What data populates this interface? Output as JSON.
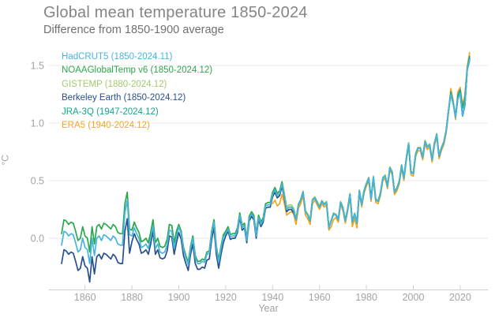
{
  "header": {
    "title": "Global mean temperature 1850-2024",
    "subtitle": "Difference from 1850-1900 average"
  },
  "chart_data": {
    "type": "line",
    "title": "Global mean temperature 1850-2024",
    "subtitle": "Difference from 1850-1900 average",
    "xlabel": "Year",
    "ylabel": "°C",
    "grid": "horizontal",
    "legend_position": "top-left",
    "xlim": [
      1848,
      2026
    ],
    "ylim": [
      -0.45,
      1.65
    ],
    "x_ticks": [
      1860,
      1880,
      1900,
      1920,
      1940,
      1960,
      1980,
      2000,
      2020
    ],
    "y_ticks": [
      0.0,
      0.5,
      1.0,
      1.5
    ],
    "y_tick_labels": [
      "0.0",
      "0.5",
      "1.0",
      "1.5"
    ],
    "style": {
      "grid_color": "#e8e9ea",
      "axis_color": "#cdcfd1",
      "tick_label_color": "#a1a3a6",
      "background": "#ffffff"
    },
    "draw_order": [
      2,
      5,
      3,
      1,
      4,
      0
    ],
    "series": [
      {
        "name": "HadCRUT5",
        "label": "HadCRUT5 (1850-2024.11)",
        "color": "#45b5e0",
        "start_year": 1850,
        "end": "2024.11",
        "values": [
          -0.06,
          0.06,
          0.05,
          0.02,
          0.04,
          0.03,
          -0.04,
          -0.12,
          -0.1,
          0.0,
          -0.08,
          -0.1,
          -0.22,
          0.0,
          -0.15,
          0.0,
          0.02,
          -0.02,
          0.03,
          0.02,
          0.0,
          -0.02,
          0.02,
          0.0,
          -0.05,
          -0.06,
          -0.06,
          0.22,
          0.33,
          0.03,
          0.02,
          0.09,
          0.04,
          0.0,
          -0.08,
          -0.07,
          -0.05,
          -0.09,
          0.0,
          0.11,
          -0.09,
          -0.05,
          -0.12,
          -0.13,
          -0.12,
          -0.06,
          0.07,
          0.06,
          -0.09,
          0.01,
          0.1,
          0.04,
          -0.1,
          -0.17,
          -0.23,
          -0.09,
          0.0,
          -0.17,
          -0.22,
          -0.22,
          -0.2,
          -0.21,
          -0.14,
          -0.13,
          0.04,
          0.14,
          -0.09,
          -0.21,
          -0.09,
          0.01,
          0.04,
          0.08,
          0.01,
          0.02,
          0.02,
          0.07,
          0.2,
          0.09,
          0.11,
          -0.02,
          0.17,
          0.21,
          0.18,
          0.02,
          0.18,
          0.12,
          0.16,
          0.28,
          0.29,
          0.29,
          0.38,
          0.42,
          0.37,
          0.39,
          0.47,
          0.37,
          0.25,
          0.27,
          0.27,
          0.24,
          0.16,
          0.29,
          0.33,
          0.4,
          0.23,
          0.2,
          0.15,
          0.33,
          0.35,
          0.31,
          0.27,
          0.32,
          0.29,
          0.31,
          0.09,
          0.15,
          0.21,
          0.2,
          0.16,
          0.31,
          0.26,
          0.15,
          0.25,
          0.38,
          0.14,
          0.21,
          0.13,
          0.41,
          0.29,
          0.41,
          0.47,
          0.52,
          0.34,
          0.53,
          0.33,
          0.32,
          0.39,
          0.52,
          0.54,
          0.45,
          0.61,
          0.57,
          0.4,
          0.43,
          0.49,
          0.63,
          0.52,
          0.69,
          0.82,
          0.57,
          0.56,
          0.73,
          0.78,
          0.78,
          0.7,
          0.84,
          0.79,
          0.81,
          0.68,
          0.82,
          0.9,
          0.71,
          0.78,
          0.83,
          0.93,
          1.1,
          1.25,
          1.17,
          1.05,
          1.21,
          1.26,
          1.06,
          1.15,
          1.46,
          1.55
        ]
      },
      {
        "name": "NOAAGlobalTemp v6",
        "label": "NOAAGlobalTemp v6 (1850-2024.12)",
        "color": "#2ba84d",
        "start_year": 1850,
        "end": "2024.12",
        "values": [
          0.04,
          0.16,
          0.15,
          0.12,
          0.14,
          0.13,
          0.06,
          -0.02,
          0.0,
          0.1,
          0.02,
          0.0,
          -0.12,
          0.1,
          -0.05,
          0.1,
          0.12,
          0.08,
          0.13,
          0.12,
          0.1,
          0.08,
          0.12,
          0.1,
          0.05,
          0.04,
          0.04,
          0.3,
          0.4,
          0.08,
          0.07,
          0.14,
          0.09,
          0.05,
          -0.03,
          -0.02,
          0.0,
          -0.04,
          0.05,
          0.16,
          -0.04,
          0.0,
          -0.07,
          -0.08,
          -0.07,
          -0.01,
          0.12,
          0.11,
          -0.04,
          0.06,
          0.12,
          0.06,
          -0.08,
          -0.15,
          -0.21,
          -0.07,
          0.02,
          -0.15,
          -0.2,
          -0.2,
          -0.18,
          -0.19,
          -0.12,
          -0.11,
          0.06,
          0.16,
          -0.07,
          -0.19,
          -0.07,
          0.03,
          0.06,
          0.1,
          0.03,
          0.04,
          0.04,
          0.09,
          0.22,
          0.11,
          0.13,
          0.0,
          0.19,
          0.23,
          0.2,
          0.04,
          0.2,
          0.14,
          0.18,
          0.3,
          0.31,
          0.31,
          0.4,
          0.44,
          0.39,
          0.41,
          0.49,
          0.37,
          0.25,
          0.27,
          0.27,
          0.24,
          0.16,
          0.29,
          0.33,
          0.4,
          0.23,
          0.2,
          0.15,
          0.33,
          0.35,
          0.31,
          0.27,
          0.32,
          0.29,
          0.31,
          0.09,
          0.15,
          0.21,
          0.2,
          0.16,
          0.31,
          0.26,
          0.15,
          0.25,
          0.38,
          0.14,
          0.21,
          0.13,
          0.41,
          0.29,
          0.41,
          0.47,
          0.52,
          0.34,
          0.53,
          0.33,
          0.32,
          0.39,
          0.52,
          0.54,
          0.45,
          0.61,
          0.57,
          0.4,
          0.43,
          0.49,
          0.63,
          0.52,
          0.69,
          0.82,
          0.57,
          0.56,
          0.73,
          0.78,
          0.78,
          0.7,
          0.84,
          0.79,
          0.81,
          0.68,
          0.82,
          0.9,
          0.71,
          0.78,
          0.83,
          0.93,
          1.1,
          1.25,
          1.17,
          1.05,
          1.21,
          1.26,
          1.06,
          1.15,
          1.46,
          1.54
        ]
      },
      {
        "name": "GISTEMP",
        "label": "GISTEMP (1880-2024.12)",
        "color": "#a5c96d",
        "start_year": 1880,
        "end": "2024.12",
        "values": [
          0.07,
          0.14,
          0.09,
          0.05,
          -0.03,
          -0.02,
          0.0,
          -0.04,
          0.05,
          0.16,
          -0.04,
          0.0,
          -0.07,
          -0.08,
          -0.07,
          -0.01,
          0.12,
          0.11,
          -0.04,
          0.06,
          0.12,
          0.06,
          -0.08,
          -0.15,
          -0.21,
          -0.07,
          0.02,
          -0.15,
          -0.2,
          -0.2,
          -0.18,
          -0.19,
          -0.12,
          -0.11,
          0.06,
          0.16,
          -0.07,
          -0.19,
          -0.07,
          0.03,
          0.06,
          0.1,
          0.03,
          0.04,
          0.04,
          0.09,
          0.22,
          0.11,
          0.13,
          0.0,
          0.19,
          0.23,
          0.2,
          0.04,
          0.2,
          0.14,
          0.18,
          0.3,
          0.31,
          0.31,
          0.4,
          0.44,
          0.39,
          0.41,
          0.49,
          0.39,
          0.27,
          0.29,
          0.29,
          0.26,
          0.17,
          0.3,
          0.34,
          0.41,
          0.24,
          0.21,
          0.16,
          0.34,
          0.36,
          0.32,
          0.28,
          0.33,
          0.3,
          0.32,
          0.1,
          0.16,
          0.22,
          0.21,
          0.17,
          0.32,
          0.27,
          0.16,
          0.26,
          0.39,
          0.15,
          0.22,
          0.14,
          0.42,
          0.3,
          0.42,
          0.48,
          0.53,
          0.35,
          0.54,
          0.34,
          0.33,
          0.4,
          0.53,
          0.55,
          0.46,
          0.62,
          0.58,
          0.41,
          0.44,
          0.5,
          0.64,
          0.53,
          0.7,
          0.83,
          0.58,
          0.57,
          0.74,
          0.79,
          0.79,
          0.71,
          0.85,
          0.8,
          0.82,
          0.69,
          0.83,
          0.91,
          0.72,
          0.79,
          0.84,
          0.94,
          1.11,
          1.27,
          1.18,
          1.06,
          1.22,
          1.28,
          1.07,
          1.16,
          1.47,
          1.57
        ]
      },
      {
        "name": "Berkeley Earth",
        "label": "Berkeley Earth (1850-2024.12)",
        "color": "#27518e",
        "start_year": 1850,
        "end": "2024.12",
        "values": [
          -0.22,
          -0.1,
          -0.11,
          -0.14,
          -0.12,
          -0.13,
          -0.2,
          -0.28,
          -0.26,
          -0.16,
          -0.24,
          -0.26,
          -0.38,
          -0.16,
          -0.31,
          -0.16,
          -0.14,
          -0.18,
          -0.13,
          -0.14,
          -0.16,
          -0.18,
          -0.14,
          -0.16,
          -0.21,
          -0.22,
          -0.22,
          0.06,
          0.17,
          -0.13,
          -0.03,
          0.04,
          -0.01,
          -0.05,
          -0.13,
          -0.12,
          -0.1,
          -0.14,
          -0.05,
          0.06,
          -0.14,
          -0.1,
          -0.17,
          -0.18,
          -0.17,
          -0.11,
          0.02,
          0.01,
          -0.14,
          -0.04,
          0.05,
          -0.01,
          -0.15,
          -0.22,
          -0.28,
          -0.14,
          -0.05,
          -0.22,
          -0.27,
          -0.27,
          -0.25,
          -0.26,
          -0.19,
          -0.18,
          -0.01,
          0.09,
          -0.14,
          -0.26,
          -0.14,
          -0.04,
          0.02,
          0.06,
          -0.01,
          0.0,
          0.0,
          0.05,
          0.18,
          0.07,
          0.09,
          -0.04,
          0.15,
          0.19,
          0.16,
          0.0,
          0.16,
          0.1,
          0.14,
          0.26,
          0.27,
          0.27,
          0.36,
          0.4,
          0.35,
          0.37,
          0.45,
          0.35,
          0.23,
          0.25,
          0.25,
          0.22,
          0.16,
          0.29,
          0.33,
          0.4,
          0.23,
          0.2,
          0.15,
          0.33,
          0.35,
          0.31,
          0.27,
          0.32,
          0.29,
          0.31,
          0.09,
          0.15,
          0.21,
          0.2,
          0.16,
          0.31,
          0.26,
          0.15,
          0.25,
          0.38,
          0.14,
          0.21,
          0.13,
          0.41,
          0.29,
          0.41,
          0.47,
          0.52,
          0.34,
          0.53,
          0.33,
          0.32,
          0.39,
          0.52,
          0.54,
          0.45,
          0.61,
          0.57,
          0.4,
          0.43,
          0.49,
          0.63,
          0.52,
          0.69,
          0.82,
          0.57,
          0.56,
          0.73,
          0.78,
          0.78,
          0.7,
          0.84,
          0.79,
          0.81,
          0.68,
          0.82,
          0.9,
          0.71,
          0.78,
          0.83,
          0.93,
          1.1,
          1.25,
          1.17,
          1.05,
          1.21,
          1.26,
          1.06,
          1.15,
          1.46,
          1.56
        ]
      },
      {
        "name": "JRA-3Q",
        "label": "JRA-3Q (1947-2024.12)",
        "color": "#16a58b",
        "start_year": 1947,
        "end": "2024.12",
        "values": [
          0.27,
          0.27,
          0.24,
          0.16,
          0.29,
          0.33,
          0.4,
          0.23,
          0.2,
          0.15,
          0.33,
          0.35,
          0.31,
          0.27,
          0.32,
          0.29,
          0.31,
          0.09,
          0.15,
          0.21,
          0.2,
          0.16,
          0.31,
          0.26,
          0.15,
          0.25,
          0.38,
          0.14,
          0.21,
          0.13,
          0.41,
          0.29,
          0.41,
          0.47,
          0.52,
          0.34,
          0.53,
          0.33,
          0.32,
          0.39,
          0.52,
          0.54,
          0.45,
          0.61,
          0.57,
          0.4,
          0.43,
          0.49,
          0.63,
          0.52,
          0.69,
          0.82,
          0.57,
          0.56,
          0.73,
          0.78,
          0.78,
          0.7,
          0.84,
          0.79,
          0.81,
          0.68,
          0.82,
          0.9,
          0.71,
          0.78,
          0.83,
          0.93,
          1.1,
          1.27,
          1.18,
          1.06,
          1.24,
          1.29,
          1.13,
          1.21,
          1.47,
          1.58
        ]
      },
      {
        "name": "ERA5",
        "label": "ERA5 (1940-2024.12)",
        "color": "#f3a71e",
        "start_year": 1940,
        "end": "2024.12",
        "values": [
          0.3,
          0.33,
          0.28,
          0.3,
          0.38,
          0.3,
          0.2,
          0.22,
          0.23,
          0.21,
          0.12,
          0.26,
          0.3,
          0.37,
          0.2,
          0.17,
          0.12,
          0.3,
          0.33,
          0.29,
          0.25,
          0.3,
          0.27,
          0.29,
          0.07,
          0.1,
          0.16,
          0.18,
          0.14,
          0.29,
          0.24,
          0.13,
          0.23,
          0.36,
          0.1,
          0.17,
          0.09,
          0.39,
          0.27,
          0.39,
          0.45,
          0.5,
          0.32,
          0.51,
          0.31,
          0.3,
          0.37,
          0.5,
          0.52,
          0.43,
          0.59,
          0.55,
          0.38,
          0.41,
          0.47,
          0.61,
          0.5,
          0.67,
          0.8,
          0.55,
          0.54,
          0.71,
          0.76,
          0.76,
          0.68,
          0.82,
          0.77,
          0.79,
          0.66,
          0.8,
          0.88,
          0.69,
          0.76,
          0.81,
          0.91,
          1.08,
          1.3,
          1.2,
          1.03,
          1.27,
          1.31,
          1.16,
          1.24,
          1.49,
          1.61
        ]
      }
    ]
  }
}
